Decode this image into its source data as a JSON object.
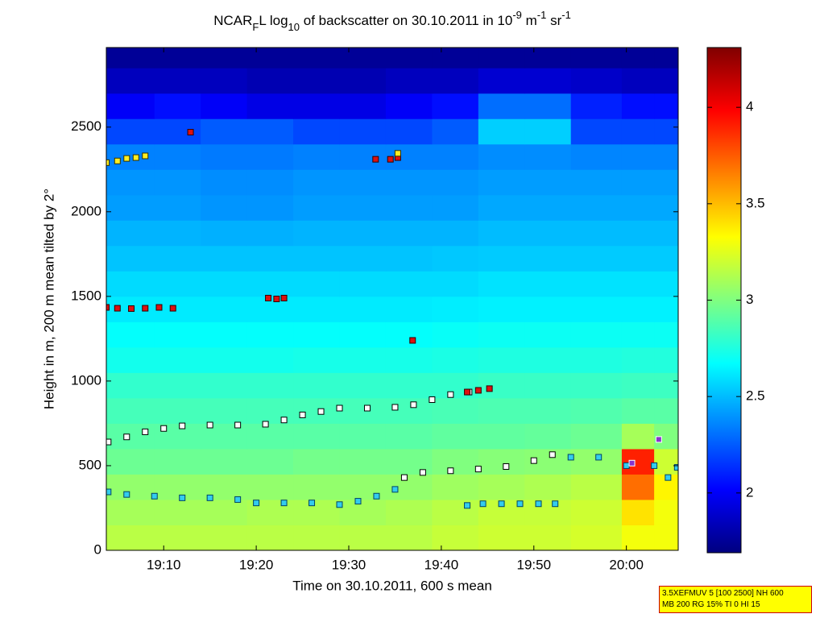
{
  "chart_data": {
    "type": "heatmap",
    "title": [
      {
        "text": "NCAR"
      },
      {
        "text": "F",
        "sub": true
      },
      {
        "text": "L log"
      },
      {
        "text": "10",
        "sub": true
      },
      {
        "text": " of backscatter on 30.10.2011 in 10"
      },
      {
        "text": "-9",
        "sup": true
      },
      {
        "text": " m"
      },
      {
        "text": "-1",
        "sup": true
      },
      {
        "text": " sr"
      },
      {
        "text": "-1",
        "sup": true
      }
    ],
    "xlabel": "Time on 30.10.2011, 600 s mean",
    "ylabel": "Height in m, 200 m mean tilted by 2°",
    "xlim": [
      1143.8,
      1205.6
    ],
    "ylim": [
      0,
      2970
    ],
    "xticks": [
      {
        "value": 1150,
        "label": "19:10"
      },
      {
        "value": 1160,
        "label": "19:20"
      },
      {
        "value": 1170,
        "label": "19:30"
      },
      {
        "value": 1180,
        "label": "19:40"
      },
      {
        "value": 1190,
        "label": "19:50"
      },
      {
        "value": 1200,
        "label": "20:00"
      }
    ],
    "yticks": [
      0,
      500,
      1000,
      1500,
      2000,
      2500
    ],
    "colormap": "jet",
    "clim": [
      1.69,
      4.31
    ],
    "cticks": [
      2,
      2.5,
      3,
      3.5,
      4
    ],
    "x_edges": [
      1143.8,
      1149,
      1154,
      1159,
      1164,
      1169,
      1174,
      1179,
      1184,
      1189,
      1194,
      1199.5,
      1203,
      1205.6
    ],
    "y_edges": [
      0,
      150,
      300,
      450,
      600,
      750,
      900,
      1050,
      1200,
      1350,
      1500,
      1650,
      1800,
      1950,
      2100,
      2250,
      2400,
      2550,
      2700,
      2850,
      2970
    ],
    "z": [
      [
        3.15,
        3.15,
        3.15,
        3.15,
        3.15,
        3.15,
        3.15,
        3.18,
        3.2,
        3.2,
        3.22,
        3.3,
        3.3
      ],
      [
        3.1,
        3.1,
        3.1,
        3.12,
        3.12,
        3.1,
        3.12,
        3.15,
        3.18,
        3.18,
        3.2,
        3.4,
        3.3
      ],
      [
        3.05,
        3.05,
        3.05,
        3.05,
        3.05,
        3.05,
        3.05,
        3.08,
        3.1,
        3.12,
        3.15,
        3.7,
        3.35
      ],
      [
        2.95,
        2.95,
        2.95,
        2.95,
        2.97,
        2.97,
        2.97,
        3.0,
        3.02,
        3.03,
        3.05,
        3.9,
        3.2
      ],
      [
        2.9,
        2.9,
        2.9,
        2.9,
        2.9,
        2.9,
        2.9,
        2.92,
        2.92,
        2.93,
        2.95,
        3.1,
        3.0
      ],
      [
        2.85,
        2.85,
        2.85,
        2.85,
        2.85,
        2.85,
        2.85,
        2.86,
        2.87,
        2.87,
        2.88,
        2.9,
        2.9
      ],
      [
        2.8,
        2.8,
        2.8,
        2.8,
        2.8,
        2.8,
        2.8,
        2.8,
        2.82,
        2.82,
        2.82,
        2.83,
        2.83
      ],
      [
        2.72,
        2.72,
        2.72,
        2.72,
        2.73,
        2.73,
        2.73,
        2.74,
        2.75,
        2.75,
        2.75,
        2.76,
        2.76
      ],
      [
        2.68,
        2.68,
        2.68,
        2.68,
        2.68,
        2.68,
        2.68,
        2.69,
        2.7,
        2.7,
        2.7,
        2.7,
        2.7
      ],
      [
        2.62,
        2.62,
        2.62,
        2.62,
        2.62,
        2.62,
        2.62,
        2.63,
        2.64,
        2.64,
        2.64,
        2.64,
        2.64
      ],
      [
        2.58,
        2.58,
        2.58,
        2.58,
        2.58,
        2.58,
        2.58,
        2.58,
        2.6,
        2.6,
        2.6,
        2.6,
        2.6
      ],
      [
        2.52,
        2.52,
        2.52,
        2.52,
        2.52,
        2.52,
        2.52,
        2.53,
        2.54,
        2.54,
        2.54,
        2.54,
        2.54
      ],
      [
        2.48,
        2.48,
        2.47,
        2.47,
        2.48,
        2.48,
        2.48,
        2.48,
        2.5,
        2.5,
        2.5,
        2.5,
        2.5
      ],
      [
        2.42,
        2.42,
        2.4,
        2.4,
        2.42,
        2.42,
        2.42,
        2.42,
        2.45,
        2.45,
        2.45,
        2.45,
        2.45
      ],
      [
        2.4,
        2.4,
        2.38,
        2.38,
        2.4,
        2.4,
        2.4,
        2.4,
        2.42,
        2.42,
        2.42,
        2.42,
        2.42
      ],
      [
        2.35,
        2.35,
        2.33,
        2.33,
        2.35,
        2.35,
        2.35,
        2.35,
        2.38,
        2.38,
        2.36,
        2.36,
        2.36
      ],
      [
        2.2,
        2.2,
        2.25,
        2.25,
        2.2,
        2.2,
        2.2,
        2.25,
        2.55,
        2.55,
        2.2,
        2.2,
        2.2
      ],
      [
        2.0,
        2.05,
        2.0,
        1.95,
        1.95,
        1.95,
        2.0,
        2.05,
        2.3,
        2.3,
        2.1,
        2.05,
        2.05
      ],
      [
        1.85,
        1.85,
        1.85,
        1.82,
        1.82,
        1.82,
        1.85,
        1.85,
        1.9,
        1.9,
        1.88,
        1.85,
        1.85
      ],
      [
        1.75,
        1.75,
        1.75,
        1.75,
        1.75,
        1.75,
        1.75,
        1.75,
        1.75,
        1.75,
        1.75,
        1.75,
        1.75
      ]
    ],
    "series": [
      {
        "color": "#ffffff",
        "edgecolor": "#000000",
        "x": [
          1144,
          1146,
          1148,
          1150,
          1152,
          1155,
          1158,
          1161,
          1163,
          1165,
          1167,
          1169,
          1172,
          1175,
          1177,
          1179,
          1181,
          1183
        ],
        "y": [
          640,
          670,
          700,
          720,
          735,
          740,
          740,
          745,
          770,
          800,
          820,
          840,
          840,
          845,
          860,
          890,
          920,
          935
        ]
      },
      {
        "color": "#ffffff",
        "edgecolor": "#000000",
        "x": [
          1176,
          1178,
          1181,
          1184,
          1187,
          1190,
          1192
        ],
        "y": [
          430,
          460,
          470,
          480,
          495,
          530,
          565
        ]
      },
      {
        "color": "#33ccee",
        "edgecolor": "#004466",
        "x": [
          1144,
          1146,
          1149,
          1152,
          1155,
          1158,
          1160,
          1163,
          1166,
          1169,
          1171,
          1173,
          1175,
          1194,
          1197,
          1200,
          1203,
          1204.5,
          1205.5
        ],
        "y": [
          345,
          330,
          320,
          310,
          310,
          300,
          280,
          280,
          280,
          270,
          290,
          320,
          360,
          550,
          550,
          500,
          500,
          430,
          490
        ]
      },
      {
        "color": "#33ccee",
        "edgecolor": "#004466",
        "x": [
          1182.8,
          1184.5,
          1186.5,
          1188.5,
          1190.5,
          1192.3
        ],
        "y": [
          265,
          275,
          275,
          275,
          275,
          275
        ]
      },
      {
        "color": "#dd1111",
        "edgecolor": "#330000",
        "x": [
          1143.8,
          1145,
          1146.5,
          1148,
          1149.5,
          1151,
          1161.3,
          1162.2,
          1163,
          1176.9,
          1182.8,
          1184,
          1185.2,
          1172.9,
          1174.5,
          1175.3,
          1152.9
        ],
        "y": [
          1435,
          1430,
          1428,
          1430,
          1435,
          1430,
          1490,
          1485,
          1490,
          1240,
          935,
          945,
          955,
          2310,
          2310,
          2320,
          2470
        ]
      },
      {
        "color": "#ffee22",
        "edgecolor": "#333300",
        "x": [
          1143.8,
          1145,
          1146,
          1147,
          1148,
          1175.3
        ],
        "y": [
          2290,
          2300,
          2315,
          2320,
          2330,
          2345
        ]
      },
      {
        "color": "#8833cc",
        "edgecolor": "#ffffff",
        "x": [
          1200.6,
          1203.5
        ],
        "y": [
          515,
          655
        ]
      }
    ],
    "info": [
      "3.5XEFMUV 5 [100 2500] NH 600",
      "MB 200 RG 15% TI 0 HI 15"
    ]
  }
}
